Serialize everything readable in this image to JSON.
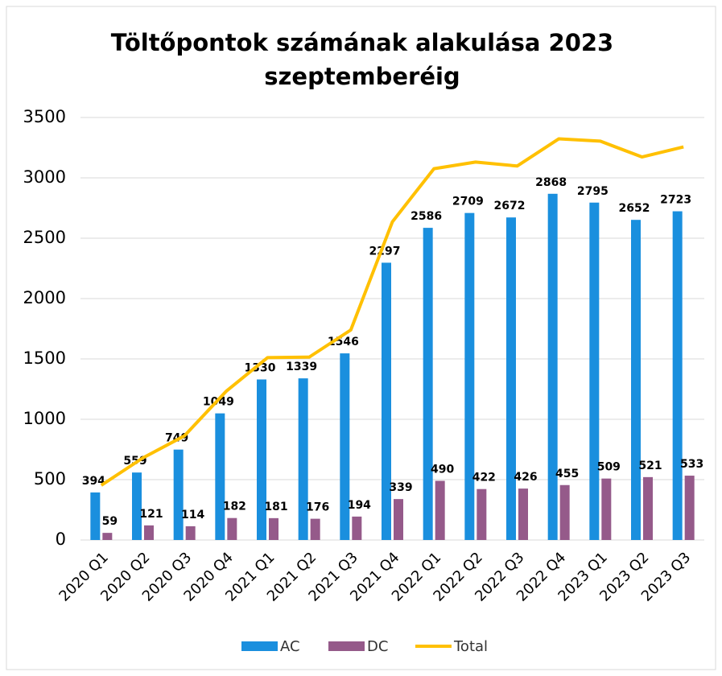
{
  "chart_data": {
    "type": "bar",
    "title": "Töltőpontok számának alakulása 2023 szeptemberéig",
    "categories": [
      "2020 Q1",
      "2020 Q2",
      "2020 Q3",
      "2020 Q4",
      "2021 Q1",
      "2021 Q2",
      "2021 Q3",
      "2021 Q4",
      "2022 Q1",
      "2022 Q2",
      "2022 Q3",
      "2022 Q4",
      "2023 Q1",
      "2023 Q2",
      "2023 Q3"
    ],
    "series": [
      {
        "name": "AC",
        "color": "#1a8fde",
        "values": [
          394,
          559,
          749,
          1049,
          1330,
          1339,
          1546,
          2297,
          2586,
          2709,
          2672,
          2868,
          2795,
          2652,
          2723
        ]
      },
      {
        "name": "DC",
        "color": "#955a8a",
        "values": [
          59,
          121,
          114,
          182,
          181,
          176,
          194,
          339,
          490,
          422,
          426,
          455,
          509,
          521,
          533
        ]
      },
      {
        "name": "Total",
        "type": "line",
        "color": "#ffc000",
        "values": [
          453,
          680,
          863,
          1231,
          1511,
          1515,
          1740,
          2636,
          3076,
          3131,
          3098,
          3323,
          3304,
          3173,
          3256
        ]
      }
    ],
    "ylim": [
      0,
      3500
    ],
    "yticks": [
      0,
      500,
      1000,
      1500,
      2000,
      2500,
      3000,
      3500
    ],
    "grid": true,
    "legend": "bottom"
  }
}
